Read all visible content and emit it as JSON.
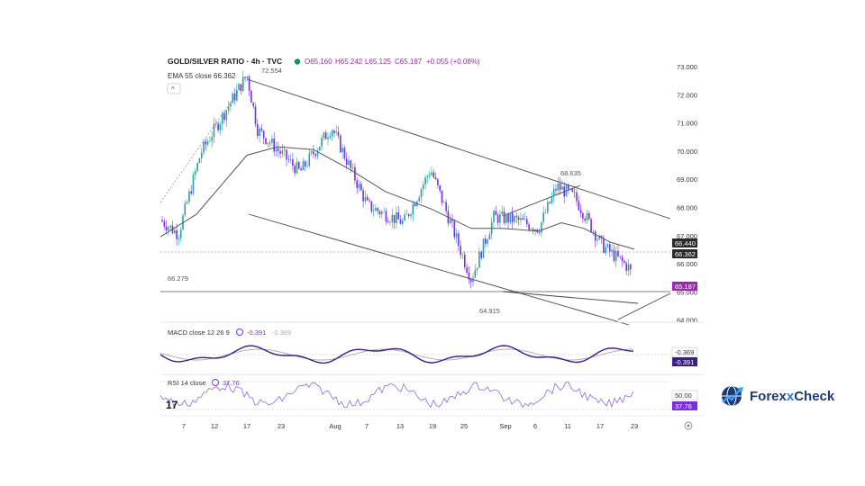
{
  "header": {
    "symbol": "GOLD/SILVER RATIO · 4h · TVC",
    "o": "O65.160",
    "h": "H65.242",
    "l": "L65.125",
    "c": "C65.187",
    "chg": "+0.055 (+0.08%)",
    "ema_label": "EMA 55 close",
    "ema_value": "66.362",
    "collapse_glyph": "^"
  },
  "annotations": {
    "high": "72.554",
    "mid_high": "68.635",
    "low": "64.915",
    "left_level": "66.279"
  },
  "price_axis": [
    "73.000",
    "72.000",
    "71.000",
    "70.000",
    "69.000",
    "68.000",
    "67.000",
    "66.000",
    "65.000",
    "64.000"
  ],
  "price_tags": {
    "level": "66.440",
    "ema": "66.362",
    "last": "65.187"
  },
  "macd": {
    "label": "MACD close 12 26 9",
    "v1": "-0.391",
    "v2": "-0.369",
    "tag1": "-0.369",
    "tag2": "-0.391"
  },
  "rsi": {
    "label": "RSI 14 close",
    "value": "37.76",
    "tag_level": "50.00",
    "tag_value": "37.76"
  },
  "time_axis": [
    "7",
    "12",
    "17",
    "23",
    "Aug",
    "7",
    "13",
    "19",
    "25",
    "Sep",
    "6",
    "11",
    "17",
    "23"
  ],
  "branding": {
    "name_a": "Forex",
    "name_x": "x",
    "name_b": "Check"
  },
  "colors": {
    "up": "#26a69a",
    "down": "#7b2ee0",
    "ema": "#555555",
    "last_tag": "#9c27b0",
    "axis_tag": "#2a2a2a"
  },
  "chart_data": {
    "type": "candlestick",
    "title": "GOLD/SILVER RATIO · 4h · TVC",
    "ylim": [
      63.7,
      73.3
    ],
    "series": [
      {
        "name": "GOLD/SILVER RATIO",
        "x": [
          "2024-07-04",
          "2024-07-17",
          "2024-07-30",
          "2024-08-19",
          "2024-08-29",
          "2024-09-05",
          "2024-09-09",
          "2024-09-11",
          "2024-09-20",
          "2024-09-23"
        ],
        "values": [
          67.5,
          72.554,
          69.2,
          69.2,
          64.915,
          67.4,
          65.0,
          68.635,
          65.9,
          65.187
        ]
      },
      {
        "name": "EMA 55 close",
        "x": [
          "2024-07-04",
          "2024-07-17",
          "2024-07-30",
          "2024-08-19",
          "2024-08-29",
          "2024-09-05",
          "2024-09-11",
          "2024-09-23"
        ],
        "values": [
          66.8,
          69.9,
          69.8,
          67.8,
          67.0,
          67.1,
          67.0,
          66.362
        ]
      }
    ]
  }
}
